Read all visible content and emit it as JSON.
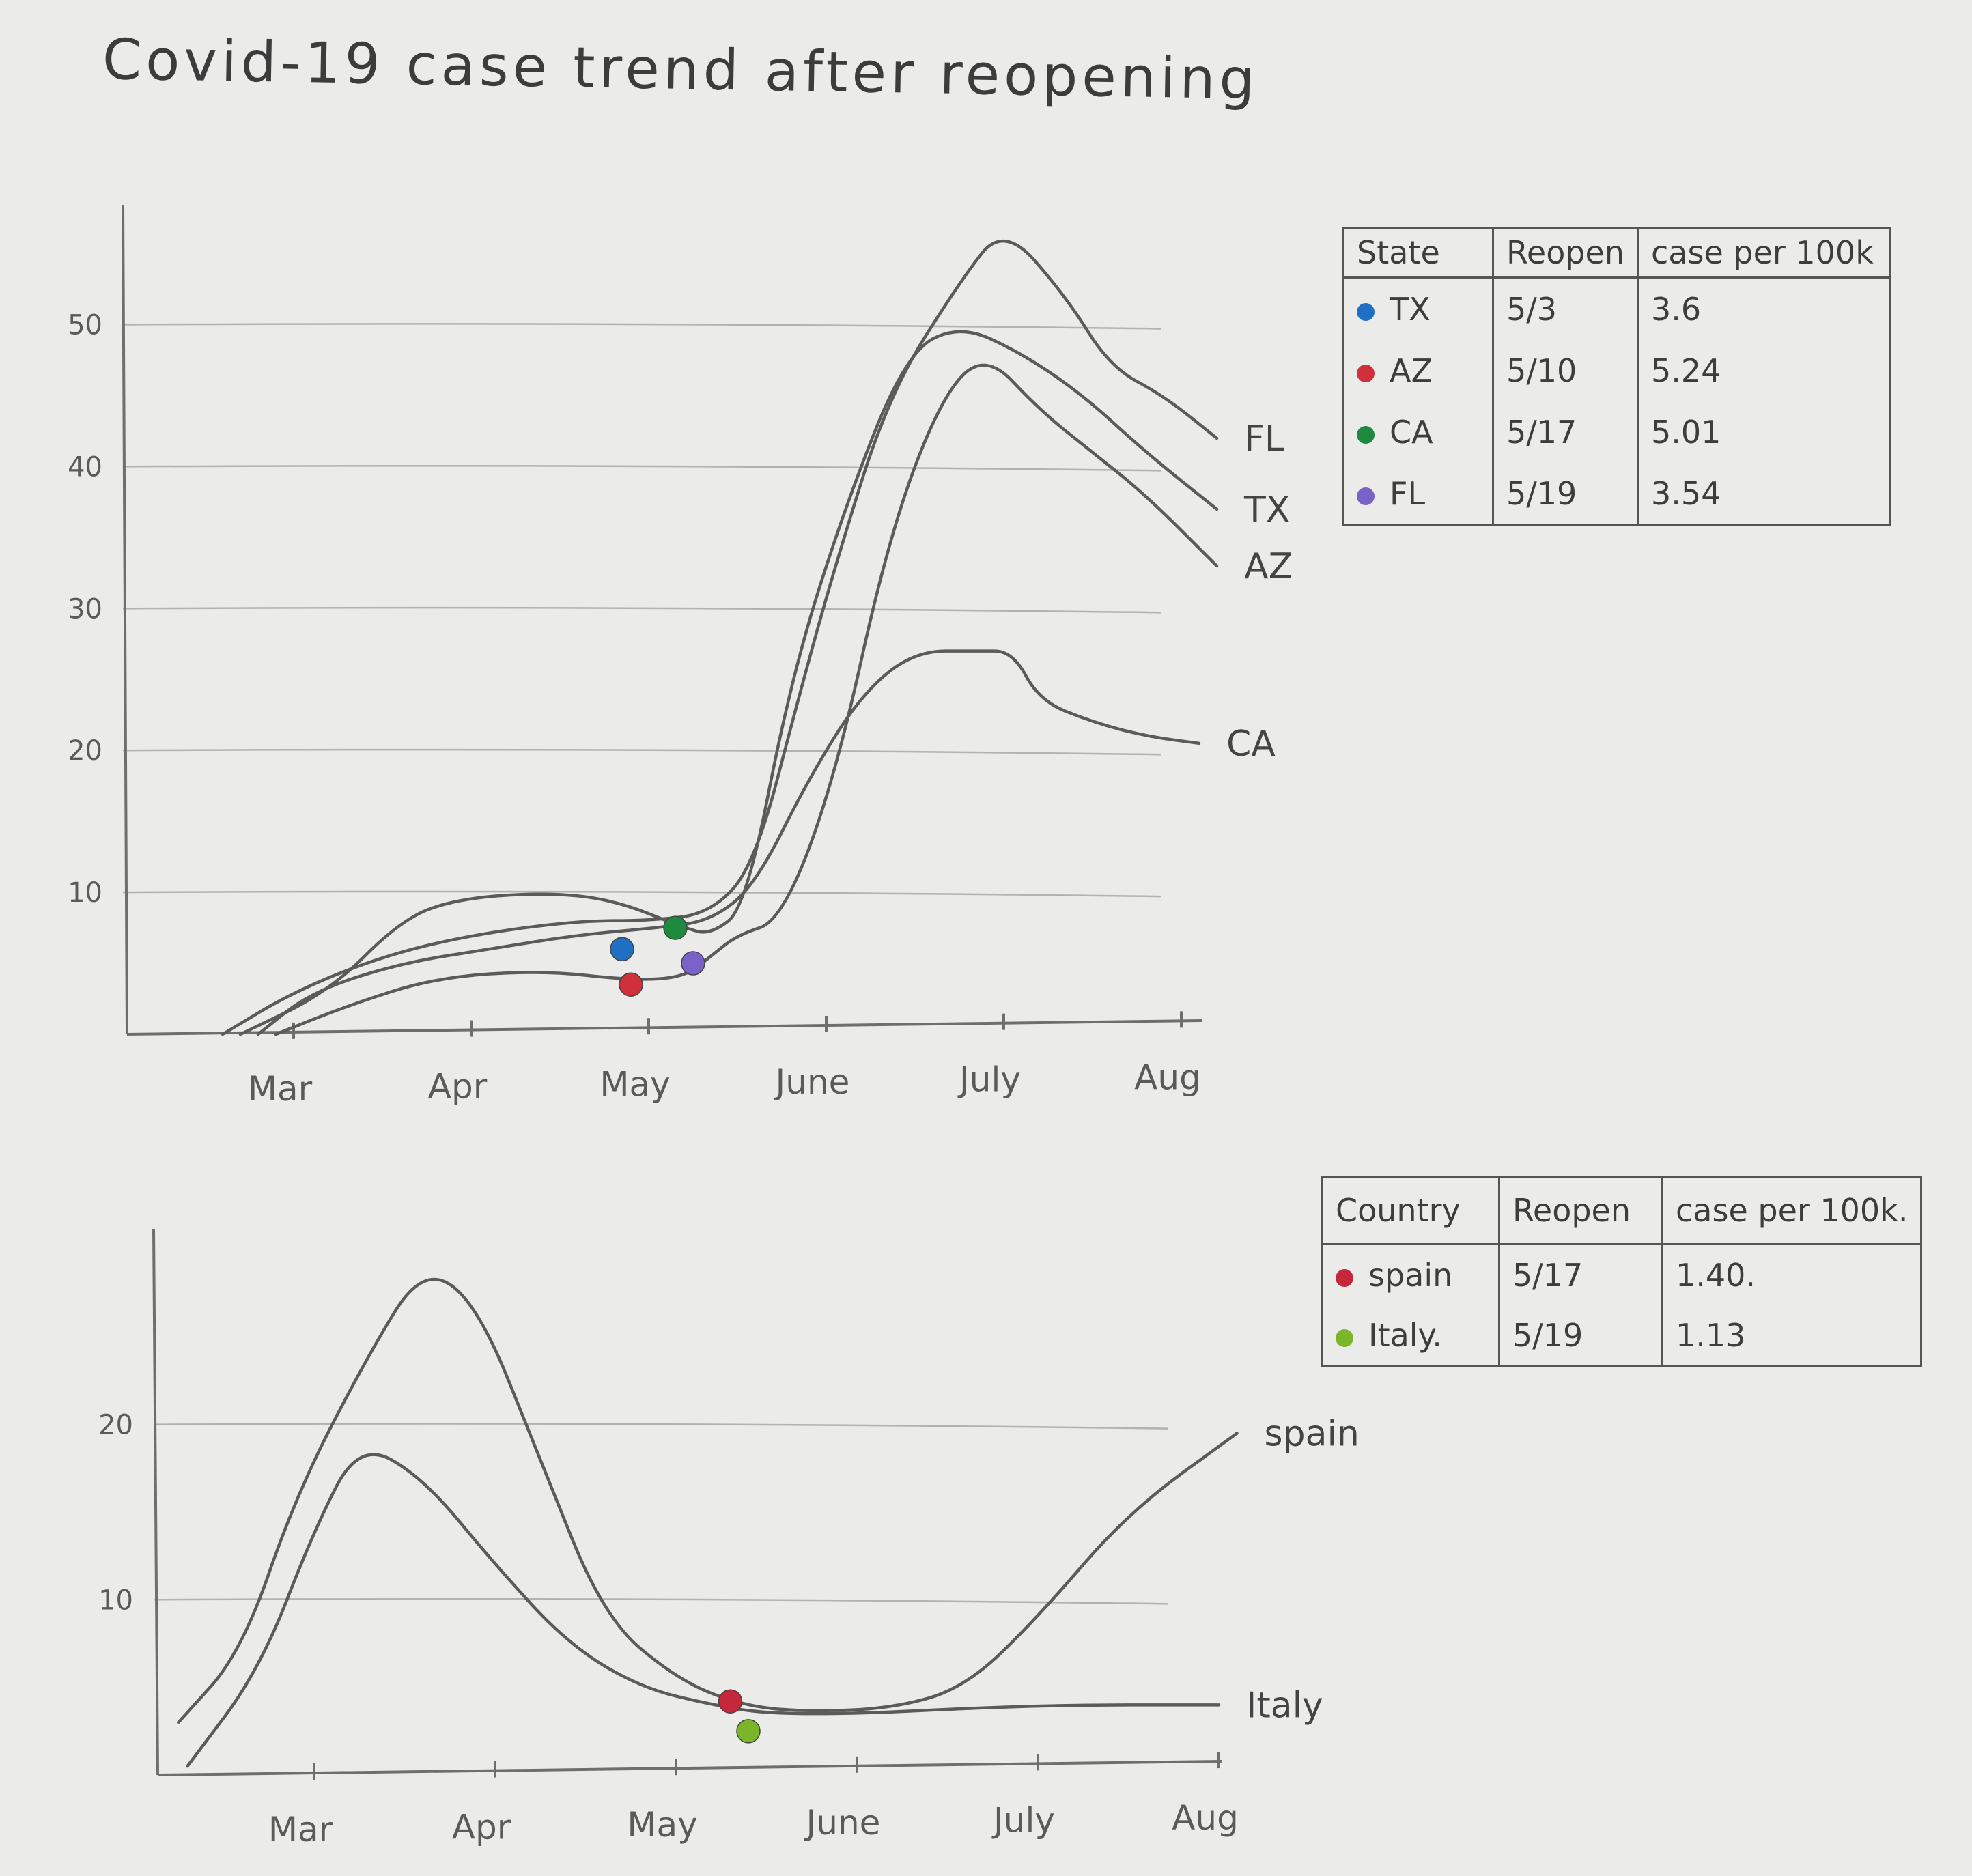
{
  "title": "Covid-19 case trend after reopening",
  "chart_data": [
    {
      "type": "line",
      "x": [
        "Mar",
        "Apr",
        "May",
        "June",
        "July",
        "Aug"
      ],
      "xlabel": "",
      "ylabel": "",
      "yticks": [
        "10",
        "20",
        "30",
        "40",
        "50"
      ],
      "ylim": [
        0,
        57
      ],
      "grid": true,
      "series": [
        {
          "name": "FL",
          "color": "#5b5b5b",
          "points": [
            [
              -0.4,
              0
            ],
            [
              0.0,
              3
            ],
            [
              0.5,
              5.5
            ],
            [
              1.0,
              7
            ],
            [
              1.6,
              8
            ],
            [
              2.0,
              8
            ],
            [
              2.35,
              8.5
            ],
            [
              2.6,
              12
            ],
            [
              2.85,
              24
            ],
            [
              3.05,
              33
            ],
            [
              3.35,
              45
            ],
            [
              3.75,
              53
            ],
            [
              4.0,
              57
            ],
            [
              4.35,
              52
            ],
            [
              4.6,
              47
            ],
            [
              4.9,
              45
            ],
            [
              5.2,
              42
            ]
          ]
        },
        {
          "name": "TX",
          "color": "#5b5b5b",
          "points": [
            [
              -0.3,
              0
            ],
            [
              0.2,
              3
            ],
            [
              0.6,
              8
            ],
            [
              0.9,
              9.5
            ],
            [
              1.4,
              10
            ],
            [
              1.8,
              9.5
            ],
            [
              2.2,
              7.5
            ],
            [
              2.35,
              7
            ],
            [
              2.55,
              9
            ],
            [
              2.8,
              25
            ],
            [
              3.1,
              37
            ],
            [
              3.45,
              48
            ],
            [
              3.75,
              50
            ],
            [
              4.1,
              48
            ],
            [
              4.45,
              45
            ],
            [
              4.8,
              41
            ],
            [
              5.2,
              37
            ]
          ]
        },
        {
          "name": "AZ",
          "color": "#5b5b5b",
          "points": [
            [
              -0.1,
              0
            ],
            [
              0.3,
              2
            ],
            [
              0.8,
              4
            ],
            [
              1.4,
              4.5
            ],
            [
              1.9,
              3.8
            ],
            [
              2.2,
              4
            ],
            [
              2.35,
              5.5
            ],
            [
              2.5,
              7
            ],
            [
              2.75,
              8
            ],
            [
              3.05,
              18
            ],
            [
              3.35,
              35
            ],
            [
              3.65,
              45
            ],
            [
              3.9,
              48
            ],
            [
              4.2,
              44
            ],
            [
              4.5,
              41
            ],
            [
              4.8,
              38
            ],
            [
              5.2,
              33
            ]
          ]
        },
        {
          "name": "CA",
          "color": "#5b5b5b",
          "points": [
            [
              -0.2,
              0
            ],
            [
              0.1,
              3
            ],
            [
              0.6,
              5
            ],
            [
              1.1,
              6
            ],
            [
              1.6,
              7
            ],
            [
              2.05,
              7.5
            ],
            [
              2.35,
              8
            ],
            [
              2.6,
              10.5
            ],
            [
              2.9,
              18
            ],
            [
              3.2,
              24
            ],
            [
              3.5,
              27
            ],
            [
              3.85,
              27
            ],
            [
              4.05,
              27
            ],
            [
              4.2,
              23.5
            ],
            [
              4.5,
              22
            ],
            [
              4.8,
              21
            ],
            [
              5.1,
              20.5
            ]
          ]
        }
      ],
      "annotations": [
        {
          "series": "TX",
          "label": "TX reopen",
          "x": 1.85,
          "y": 6.0,
          "color": "#1f6fc5"
        },
        {
          "series": "AZ",
          "label": "AZ reopen",
          "x": 1.9,
          "y": 3.5,
          "color": "#d0303c"
        },
        {
          "series": "CA",
          "label": "CA reopen",
          "x": 2.15,
          "y": 7.5,
          "color": "#1f8a3e"
        },
        {
          "series": "FL",
          "label": "FL reopen",
          "x": 2.25,
          "y": 5.0,
          "color": "#7a62c8"
        }
      ]
    },
    {
      "type": "line",
      "x": [
        "Mar",
        "Apr",
        "May",
        "June",
        "July",
        "Aug"
      ],
      "xlabel": "",
      "ylabel": "",
      "yticks": [
        "10",
        "20"
      ],
      "ylim": [
        0,
        30
      ],
      "grid": true,
      "series": [
        {
          "name": "spain",
          "color": "#5b5b5b",
          "points": [
            [
              -0.75,
              3
            ],
            [
              -0.4,
              7
            ],
            [
              -0.1,
              16
            ],
            [
              0.3,
              24
            ],
            [
              0.6,
              29
            ],
            [
              0.9,
              27
            ],
            [
              1.25,
              18
            ],
            [
              1.6,
              9
            ],
            [
              2.0,
              5.5
            ],
            [
              2.35,
              4
            ],
            [
              2.7,
              3.6
            ],
            [
              3.2,
              3.8
            ],
            [
              3.6,
              5
            ],
            [
              4.0,
              9
            ],
            [
              4.5,
              15
            ],
            [
              5.1,
              19.5
            ]
          ]
        },
        {
          "name": "Italy",
          "color": "#5b5b5b",
          "points": [
            [
              -0.7,
              0.5
            ],
            [
              -0.3,
              6
            ],
            [
              0.0,
              14
            ],
            [
              0.25,
              19
            ],
            [
              0.6,
              17
            ],
            [
              1.0,
              12
            ],
            [
              1.4,
              7.5
            ],
            [
              1.8,
              5
            ],
            [
              2.2,
              4
            ],
            [
              2.5,
              3.5
            ],
            [
              3.0,
              3.5
            ],
            [
              3.6,
              3.8
            ],
            [
              4.2,
              4
            ],
            [
              5.0,
              4
            ]
          ]
        }
      ],
      "annotations": [
        {
          "series": "spain",
          "label": "spain reopen",
          "x": 2.3,
          "y": 4.2,
          "color": "#c5283a"
        },
        {
          "series": "Italy",
          "label": "Italy reopen",
          "x": 2.4,
          "y": 2.5,
          "color": "#7bb52a"
        }
      ]
    }
  ],
  "state_table": {
    "headers": [
      "State",
      "Reopen",
      "case per 100k"
    ],
    "rows": [
      {
        "state": "TX",
        "reopen": "5/3",
        "cases": "3.6",
        "color": "#1f6fc5"
      },
      {
        "state": "AZ",
        "reopen": "5/10",
        "cases": "5.24",
        "color": "#d0303c"
      },
      {
        "state": "CA",
        "reopen": "5/17",
        "cases": "5.01",
        "color": "#1f8a3e"
      },
      {
        "state": "FL",
        "reopen": "5/19",
        "cases": "3.54",
        "color": "#7a62c8"
      }
    ]
  },
  "country_table": {
    "headers": [
      "Country",
      "Reopen",
      "case per 100k."
    ],
    "rows": [
      {
        "country": "spain",
        "reopen": "5/17",
        "cases": "1.40.",
        "color": "#c5283a"
      },
      {
        "country": "Italy.",
        "reopen": "5/19",
        "cases": "1.13",
        "color": "#7bb52a"
      }
    ]
  }
}
